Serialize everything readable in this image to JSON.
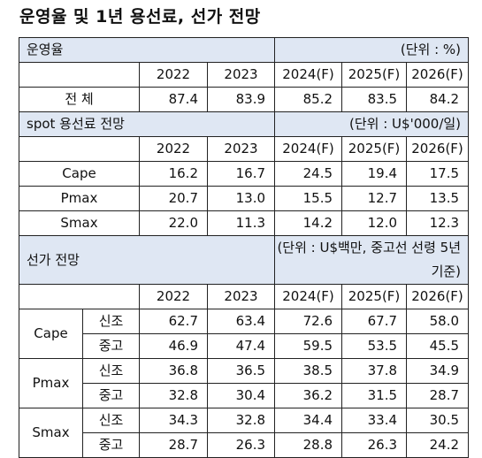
{
  "title": "운영율 및 1년 용선료, 선가 전망",
  "utilization": {
    "header": "운영율",
    "unit": "(단위 : %)",
    "years": [
      "2022",
      "2023",
      "2024(F)",
      "2025(F)",
      "2026(F)"
    ],
    "rows": [
      {
        "label": "전   체",
        "values": [
          "87.4",
          "83.9",
          "85.2",
          "83.5",
          "84.2"
        ]
      }
    ]
  },
  "spot": {
    "header": "spot 용선료 전망",
    "unit": "(단위 : U$'000/일)",
    "years": [
      "2022",
      "2023",
      "2024(F)",
      "2025(F)",
      "2026(F)"
    ],
    "rows": [
      {
        "label": "Cape",
        "values": [
          "16.2",
          "16.7",
          "24.5",
          "19.4",
          "17.5"
        ]
      },
      {
        "label": "Pmax",
        "values": [
          "20.7",
          "13.0",
          "15.5",
          "12.7",
          "13.5"
        ]
      },
      {
        "label": "Smax",
        "values": [
          "22.0",
          "11.3",
          "14.2",
          "12.0",
          "12.3"
        ]
      }
    ]
  },
  "price": {
    "header": "선가 전망",
    "unit": "(단위 : U$백만, 중고선 선령 5년 기준)",
    "years": [
      "2022",
      "2023",
      "2024(F)",
      "2025(F)",
      "2026(F)"
    ],
    "groups": [
      {
        "label": "Cape",
        "rows": [
          {
            "sub": "신조",
            "values": [
              "62.7",
              "63.4",
              "72.6",
              "67.7",
              "58.0"
            ]
          },
          {
            "sub": "중고",
            "values": [
              "46.9",
              "47.4",
              "59.5",
              "53.5",
              "45.5"
            ]
          }
        ]
      },
      {
        "label": "Pmax",
        "rows": [
          {
            "sub": "신조",
            "values": [
              "36.8",
              "36.5",
              "38.5",
              "37.8",
              "34.9"
            ]
          },
          {
            "sub": "중고",
            "values": [
              "32.8",
              "30.4",
              "36.2",
              "31.5",
              "28.7"
            ]
          }
        ]
      },
      {
        "label": "Smax",
        "rows": [
          {
            "sub": "신조",
            "values": [
              "34.3",
              "32.8",
              "34.4",
              "33.4",
              "30.5"
            ]
          },
          {
            "sub": "중고",
            "values": [
              "28.7",
              "26.3",
              "28.8",
              "26.3",
              "24.2"
            ]
          }
        ]
      }
    ]
  }
}
